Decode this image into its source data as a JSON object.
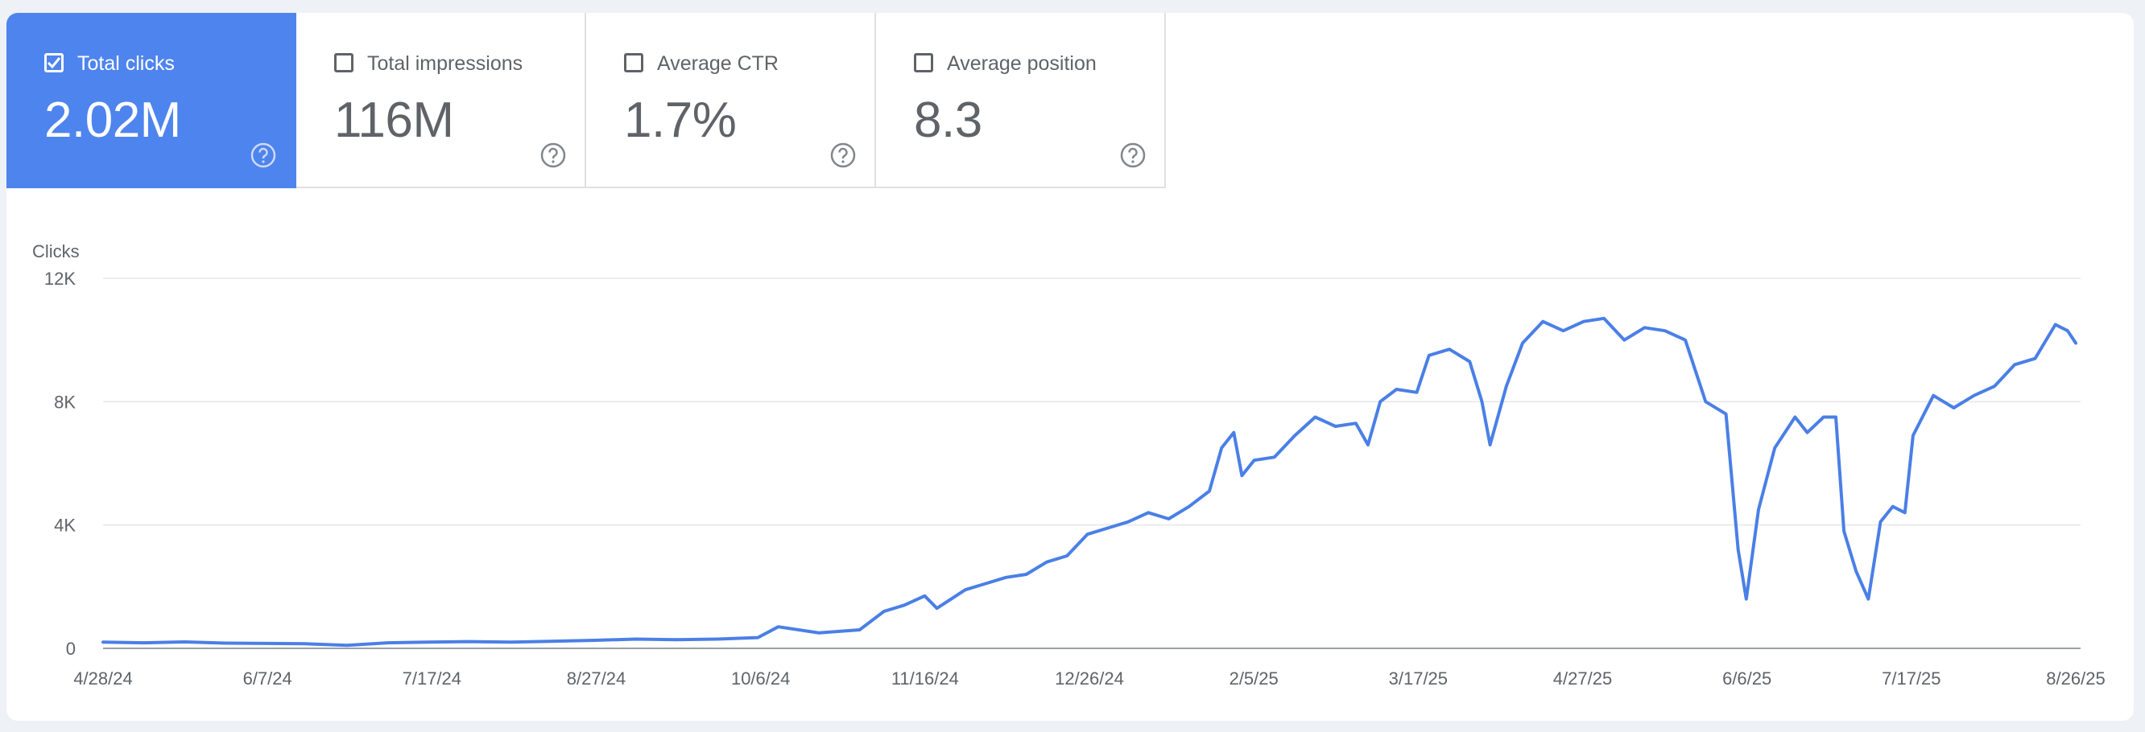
{
  "metrics": [
    {
      "label": "Total clicks",
      "value": "2.02M",
      "checked": true,
      "help_icon": "help-circle-icon"
    },
    {
      "label": "Total impressions",
      "value": "116M",
      "checked": false,
      "help_icon": "help-circle-icon"
    },
    {
      "label": "Average CTR",
      "value": "1.7%",
      "checked": false,
      "help_icon": "help-circle-icon"
    },
    {
      "label": "Average position",
      "value": "8.3",
      "checked": false,
      "help_icon": "help-circle-icon"
    }
  ],
  "colors": {
    "accent": "#4e84ee",
    "line": "#4a7fe6",
    "grid": "#e6e6e6",
    "text": "#5f6368"
  },
  "chart_data": {
    "type": "line",
    "ylabel": "Clicks",
    "ylim": [
      0,
      12000
    ],
    "y_ticks": [
      {
        "value": 0,
        "label": "0"
      },
      {
        "value": 4000,
        "label": "4K"
      },
      {
        "value": 8000,
        "label": "8K"
      },
      {
        "value": 12000,
        "label": "12K"
      }
    ],
    "x_ticks": [
      "4/28/24",
      "6/7/24",
      "7/17/24",
      "8/27/24",
      "10/6/24",
      "11/16/24",
      "12/26/24",
      "2/5/25",
      "3/17/25",
      "4/27/25",
      "6/6/25",
      "7/17/25",
      "8/26/25"
    ],
    "x_range": [
      "2024-04-28",
      "2025-08-26"
    ],
    "grid": true,
    "series": [
      {
        "points": [
          [
            "2024-04-28",
            200
          ],
          [
            "2024-05-08",
            180
          ],
          [
            "2024-05-18",
            210
          ],
          [
            "2024-05-28",
            170
          ],
          [
            "2024-06-07",
            160
          ],
          [
            "2024-06-17",
            150
          ],
          [
            "2024-06-27",
            100
          ],
          [
            "2024-07-07",
            180
          ],
          [
            "2024-07-17",
            200
          ],
          [
            "2024-07-27",
            220
          ],
          [
            "2024-08-06",
            200
          ],
          [
            "2024-08-16",
            230
          ],
          [
            "2024-08-27",
            260
          ],
          [
            "2024-09-06",
            300
          ],
          [
            "2024-09-16",
            280
          ],
          [
            "2024-09-26",
            300
          ],
          [
            "2024-10-06",
            350
          ],
          [
            "2024-10-11",
            700
          ],
          [
            "2024-10-21",
            500
          ],
          [
            "2024-10-31",
            600
          ],
          [
            "2024-11-06",
            1200
          ],
          [
            "2024-11-11",
            1400
          ],
          [
            "2024-11-16",
            1700
          ],
          [
            "2024-11-19",
            1300
          ],
          [
            "2024-11-26",
            1900
          ],
          [
            "2024-12-01",
            2100
          ],
          [
            "2024-12-06",
            2300
          ],
          [
            "2024-12-11",
            2400
          ],
          [
            "2024-12-16",
            2800
          ],
          [
            "2024-12-21",
            3000
          ],
          [
            "2024-12-26",
            3700
          ],
          [
            "2024-12-31",
            3900
          ],
          [
            "2025-01-05",
            4100
          ],
          [
            "2025-01-10",
            4400
          ],
          [
            "2025-01-15",
            4200
          ],
          [
            "2025-01-20",
            4600
          ],
          [
            "2025-01-25",
            5100
          ],
          [
            "2025-01-28",
            6500
          ],
          [
            "2025-01-31",
            7000
          ],
          [
            "2025-02-02",
            5600
          ],
          [
            "2025-02-05",
            6100
          ],
          [
            "2025-02-10",
            6200
          ],
          [
            "2025-02-15",
            6900
          ],
          [
            "2025-02-20",
            7500
          ],
          [
            "2025-02-25",
            7200
          ],
          [
            "2025-03-02",
            7300
          ],
          [
            "2025-03-05",
            6600
          ],
          [
            "2025-03-08",
            8000
          ],
          [
            "2025-03-12",
            8400
          ],
          [
            "2025-03-17",
            8300
          ],
          [
            "2025-03-20",
            9500
          ],
          [
            "2025-03-25",
            9700
          ],
          [
            "2025-03-30",
            9300
          ],
          [
            "2025-04-02",
            8000
          ],
          [
            "2025-04-04",
            6600
          ],
          [
            "2025-04-08",
            8500
          ],
          [
            "2025-04-12",
            9900
          ],
          [
            "2025-04-17",
            10600
          ],
          [
            "2025-04-22",
            10300
          ],
          [
            "2025-04-27",
            10600
          ],
          [
            "2025-05-02",
            10700
          ],
          [
            "2025-05-07",
            10000
          ],
          [
            "2025-05-12",
            10400
          ],
          [
            "2025-05-17",
            10300
          ],
          [
            "2025-05-22",
            10000
          ],
          [
            "2025-05-27",
            8000
          ],
          [
            "2025-06-01",
            7600
          ],
          [
            "2025-06-04",
            3200
          ],
          [
            "2025-06-06",
            1600
          ],
          [
            "2025-06-09",
            4500
          ],
          [
            "2025-06-13",
            6500
          ],
          [
            "2025-06-18",
            7500
          ],
          [
            "2025-06-21",
            7000
          ],
          [
            "2025-06-25",
            7500
          ],
          [
            "2025-06-28",
            7500
          ],
          [
            "2025-06-30",
            3800
          ],
          [
            "2025-07-03",
            2500
          ],
          [
            "2025-07-06",
            1600
          ],
          [
            "2025-07-09",
            4100
          ],
          [
            "2025-07-12",
            4600
          ],
          [
            "2025-07-15",
            4400
          ],
          [
            "2025-07-17",
            6900
          ],
          [
            "2025-07-22",
            8200
          ],
          [
            "2025-07-27",
            7800
          ],
          [
            "2025-08-01",
            8200
          ],
          [
            "2025-08-06",
            8500
          ],
          [
            "2025-08-11",
            9200
          ],
          [
            "2025-08-16",
            9400
          ],
          [
            "2025-08-21",
            10500
          ],
          [
            "2025-08-24",
            10300
          ],
          [
            "2025-08-26",
            9900
          ]
        ]
      }
    ]
  }
}
